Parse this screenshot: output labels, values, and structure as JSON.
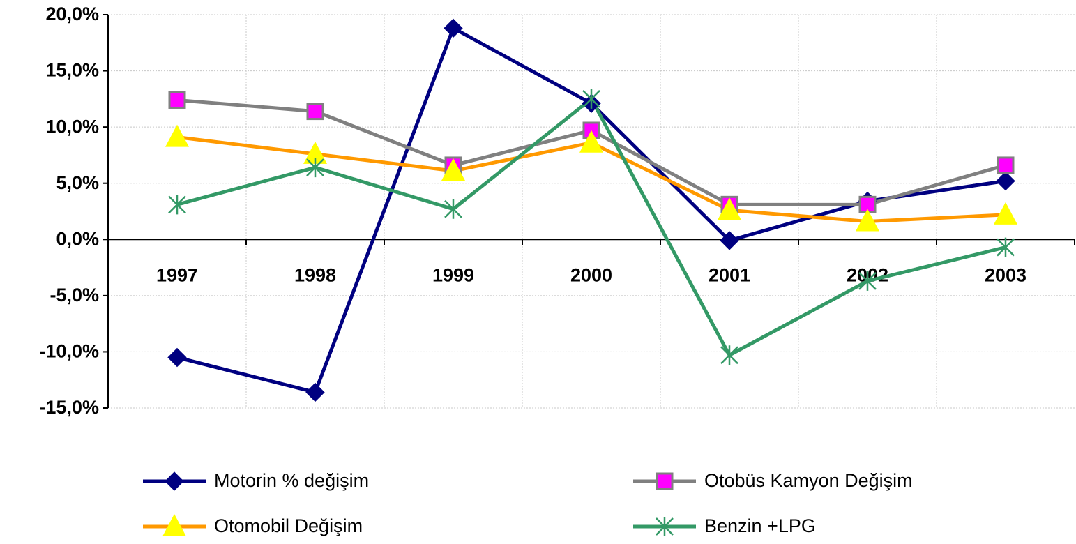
{
  "chart_data": {
    "type": "line",
    "categories": [
      "1997",
      "1998",
      "1999",
      "2000",
      "2001",
      "2002",
      "2003"
    ],
    "series": [
      {
        "name": "Motorin % değişim",
        "color": "#000080",
        "marker": "diamond",
        "marker_color": "#000080",
        "values": [
          -10.5,
          -13.6,
          18.8,
          12.1,
          -0.1,
          3.4,
          5.2
        ]
      },
      {
        "name": "Otobüs Kamyon Değişim",
        "color": "#808080",
        "marker": "square",
        "marker_color": "#ff00ff",
        "values": [
          12.4,
          11.4,
          6.6,
          9.7,
          3.1,
          3.1,
          6.6
        ]
      },
      {
        "name": "Otomobil Değişim",
        "color": "#ff9900",
        "marker": "triangle",
        "marker_color": "#ffff00",
        "values": [
          9.1,
          7.6,
          6.1,
          8.6,
          2.6,
          1.6,
          2.2
        ]
      },
      {
        "name": "Benzin +LPG",
        "color": "#339966",
        "marker": "star",
        "marker_color": "#339966",
        "values": [
          3.1,
          6.4,
          2.7,
          12.5,
          -10.3,
          -3.7,
          -0.7
        ]
      }
    ],
    "ylim": [
      -15,
      20
    ],
    "yticks": [
      {
        "value": -15,
        "label": "-15,0%"
      },
      {
        "value": -10,
        "label": "-10,0%"
      },
      {
        "value": -5,
        "label": "-5,0%"
      },
      {
        "value": 0,
        "label": "0,0%"
      },
      {
        "value": 5,
        "label": "5,0%"
      },
      {
        "value": 10,
        "label": "10,0%"
      },
      {
        "value": 15,
        "label": "15,0%"
      },
      {
        "value": 20,
        "label": "20,0%"
      }
    ],
    "grid": true,
    "legend": "bottom"
  }
}
